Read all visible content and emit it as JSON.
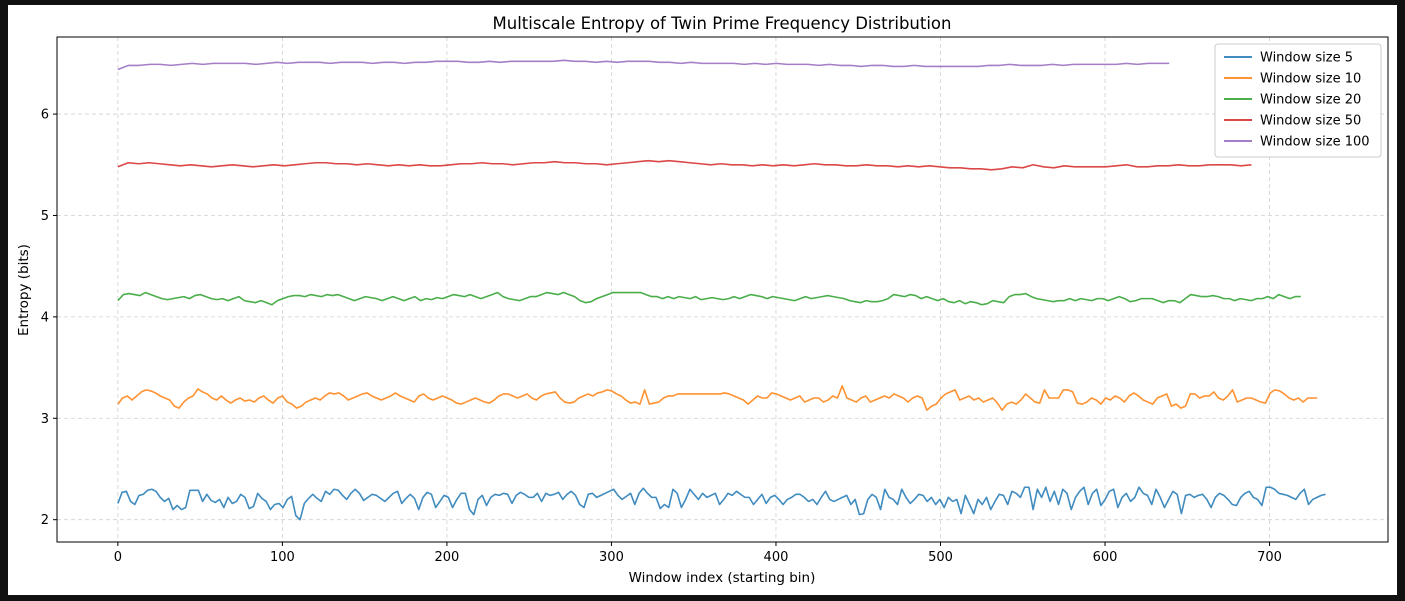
{
  "chart_data": {
    "type": "line",
    "title": "Multiscale Entropy of Twin Prime Frequency Distribution",
    "xlabel": "Window index (starting bin)",
    "ylabel": "Entropy (bits)",
    "xlim": [
      -37,
      772
    ],
    "ylim": [
      1.78,
      6.76
    ],
    "xticks": [
      0,
      100,
      200,
      300,
      400,
      500,
      600,
      700
    ],
    "yticks": [
      2,
      3,
      4,
      5,
      6
    ],
    "grid": true,
    "legend_position": "upper right",
    "series": [
      {
        "name": "Window size 5",
        "color": "#1f77b4",
        "x_end": 734,
        "y": [
          2.16,
          2.27,
          2.28,
          2.18,
          2.15,
          2.24,
          2.25,
          2.29,
          2.3,
          2.28,
          2.22,
          2.18,
          2.21,
          2.1,
          2.14,
          2.1,
          2.12,
          2.29,
          2.29,
          2.29,
          2.18,
          2.25,
          2.19,
          2.17,
          2.2,
          2.12,
          2.22,
          2.16,
          2.18,
          2.25,
          2.22,
          2.11,
          2.13,
          2.26,
          2.21,
          2.18,
          2.1,
          2.15,
          2.16,
          2.12,
          2.2,
          2.23,
          2.04,
          2.0,
          2.16,
          2.21,
          2.25,
          2.21,
          2.18,
          2.28,
          2.25,
          2.3,
          2.29,
          2.24,
          2.2,
          2.26,
          2.3,
          2.26,
          2.19,
          2.22,
          2.25,
          2.24,
          2.21,
          2.18,
          2.22,
          2.26,
          2.28,
          2.16,
          2.21,
          2.25,
          2.21,
          2.1,
          2.22,
          2.27,
          2.25,
          2.12,
          2.18,
          2.24,
          2.22,
          2.12,
          2.2,
          2.26,
          2.26,
          2.1,
          2.05,
          2.2,
          2.24,
          2.14,
          2.22,
          2.25,
          2.24,
          2.26,
          2.25,
          2.16,
          2.24,
          2.27,
          2.25,
          2.22,
          2.22,
          2.26,
          2.18,
          2.26,
          2.24,
          2.25,
          2.27,
          2.2,
          2.25,
          2.28,
          2.24,
          2.15,
          2.12,
          2.25,
          2.26,
          2.22,
          2.24,
          2.26,
          2.28,
          2.3,
          2.24,
          2.2,
          2.23,
          2.26,
          2.15,
          2.26,
          2.31,
          2.26,
          2.22,
          2.22,
          2.11,
          2.15,
          2.12,
          2.3,
          2.26,
          2.12,
          2.2,
          2.3,
          2.25,
          2.2,
          2.26,
          2.22,
          2.24,
          2.26,
          2.15,
          2.2,
          2.26,
          2.24,
          2.28,
          2.25,
          2.22,
          2.22,
          2.15,
          2.2,
          2.25,
          2.16,
          2.22,
          2.24,
          2.2,
          2.15,
          2.2,
          2.22,
          2.25,
          2.25,
          2.22,
          2.18,
          2.2,
          2.15,
          2.22,
          2.28,
          2.2,
          2.18,
          2.2,
          2.22,
          2.24,
          2.15,
          2.2,
          2.05,
          2.06,
          2.2,
          2.25,
          2.22,
          2.1,
          2.3,
          2.22,
          2.2,
          2.15,
          2.3,
          2.22,
          2.16,
          2.2,
          2.25,
          2.24,
          2.18,
          2.22,
          2.15,
          2.2,
          2.12,
          2.22,
          2.18,
          2.2,
          2.06,
          2.24,
          2.15,
          2.06,
          2.2,
          2.15,
          2.22,
          2.1,
          2.18,
          2.25,
          2.24,
          2.15,
          2.28,
          2.26,
          2.22,
          2.32,
          2.32,
          2.1,
          2.3,
          2.22,
          2.32,
          2.18,
          2.28,
          2.15,
          2.3,
          2.26,
          2.1,
          2.22,
          2.28,
          2.32,
          2.15,
          2.26,
          2.3,
          2.14,
          2.2,
          2.28,
          2.3,
          2.12,
          2.22,
          2.26,
          2.18,
          2.22,
          2.32,
          2.26,
          2.24,
          2.15,
          2.3,
          2.22,
          2.12,
          2.2,
          2.28,
          2.25,
          2.06,
          2.24,
          2.25,
          2.22,
          2.24,
          2.25,
          2.2,
          2.12,
          2.22,
          2.26,
          2.24,
          2.2,
          2.15,
          2.14,
          2.22,
          2.26,
          2.28,
          2.22,
          2.2,
          2.14,
          2.32,
          2.32,
          2.3,
          2.26,
          2.25,
          2.24,
          2.22,
          2.2,
          2.26,
          2.3,
          2.15,
          2.2,
          2.22,
          2.24,
          2.25
        ]
      },
      {
        "name": "Window size 10",
        "color": "#ff7f0e",
        "x_end": 729,
        "y": [
          3.14,
          3.2,
          3.22,
          3.18,
          3.22,
          3.26,
          3.28,
          3.27,
          3.25,
          3.22,
          3.2,
          3.18,
          3.12,
          3.1,
          3.16,
          3.2,
          3.22,
          3.29,
          3.26,
          3.24,
          3.2,
          3.18,
          3.22,
          3.18,
          3.15,
          3.18,
          3.2,
          3.17,
          3.18,
          3.16,
          3.2,
          3.22,
          3.18,
          3.15,
          3.2,
          3.22,
          3.16,
          3.14,
          3.1,
          3.12,
          3.16,
          3.18,
          3.2,
          3.18,
          3.22,
          3.25,
          3.24,
          3.25,
          3.22,
          3.18,
          3.2,
          3.22,
          3.24,
          3.25,
          3.22,
          3.2,
          3.18,
          3.2,
          3.22,
          3.25,
          3.22,
          3.2,
          3.18,
          3.16,
          3.22,
          3.24,
          3.2,
          3.18,
          3.2,
          3.22,
          3.2,
          3.18,
          3.15,
          3.14,
          3.16,
          3.18,
          3.2,
          3.18,
          3.16,
          3.15,
          3.18,
          3.22,
          3.24,
          3.24,
          3.22,
          3.2,
          3.22,
          3.24,
          3.2,
          3.18,
          3.22,
          3.24,
          3.25,
          3.26,
          3.2,
          3.16,
          3.15,
          3.16,
          3.2,
          3.22,
          3.24,
          3.22,
          3.25,
          3.26,
          3.28,
          3.27,
          3.24,
          3.22,
          3.18,
          3.15,
          3.16,
          3.14,
          3.28,
          3.14,
          3.15,
          3.16,
          3.2,
          3.22,
          3.22,
          3.24,
          3.24,
          3.24,
          3.24,
          3.24,
          3.24,
          3.24,
          3.24,
          3.24,
          3.24,
          3.25,
          3.24,
          3.22,
          3.2,
          3.18,
          3.14,
          3.18,
          3.22,
          3.2,
          3.2,
          3.25,
          3.24,
          3.22,
          3.2,
          3.18,
          3.2,
          3.22,
          3.16,
          3.18,
          3.2,
          3.2,
          3.16,
          3.18,
          3.22,
          3.2,
          3.32,
          3.2,
          3.18,
          3.16,
          3.2,
          3.22,
          3.16,
          3.18,
          3.2,
          3.22,
          3.2,
          3.24,
          3.22,
          3.2,
          3.16,
          3.2,
          3.22,
          3.2,
          3.08,
          3.12,
          3.14,
          3.2,
          3.24,
          3.26,
          3.28,
          3.18,
          3.2,
          3.22,
          3.18,
          3.2,
          3.16,
          3.18,
          3.2,
          3.15,
          3.08,
          3.14,
          3.16,
          3.14,
          3.18,
          3.24,
          3.2,
          3.16,
          3.15,
          3.28,
          3.2,
          3.2,
          3.2,
          3.28,
          3.28,
          3.26,
          3.15,
          3.14,
          3.16,
          3.2,
          3.18,
          3.14,
          3.2,
          3.18,
          3.22,
          3.2,
          3.16,
          3.22,
          3.25,
          3.22,
          3.18,
          3.16,
          3.14,
          3.2,
          3.22,
          3.24,
          3.12,
          3.14,
          3.1,
          3.12,
          3.24,
          3.24,
          3.2,
          3.22,
          3.22,
          3.26,
          3.2,
          3.18,
          3.22,
          3.28,
          3.16,
          3.18,
          3.2,
          3.2,
          3.18,
          3.16,
          3.15,
          3.25,
          3.28,
          3.27,
          3.24,
          3.2,
          3.18,
          3.2,
          3.16,
          3.2,
          3.2,
          3.2
        ]
      },
      {
        "name": "Window size 20",
        "color": "#2ca02c",
        "x_end": 719,
        "y": [
          4.16,
          4.22,
          4.23,
          4.22,
          4.21,
          4.24,
          4.22,
          4.2,
          4.18,
          4.17,
          4.18,
          4.19,
          4.2,
          4.18,
          4.21,
          4.22,
          4.2,
          4.18,
          4.17,
          4.18,
          4.16,
          4.18,
          4.2,
          4.16,
          4.15,
          4.14,
          4.16,
          4.14,
          4.12,
          4.16,
          4.18,
          4.2,
          4.21,
          4.21,
          4.2,
          4.22,
          4.21,
          4.2,
          4.22,
          4.21,
          4.22,
          4.2,
          4.18,
          4.16,
          4.18,
          4.2,
          4.19,
          4.18,
          4.16,
          4.18,
          4.2,
          4.18,
          4.16,
          4.18,
          4.2,
          4.16,
          4.18,
          4.17,
          4.19,
          4.18,
          4.2,
          4.22,
          4.21,
          4.2,
          4.22,
          4.2,
          4.18,
          4.2,
          4.22,
          4.24,
          4.2,
          4.18,
          4.17,
          4.16,
          4.18,
          4.2,
          4.2,
          4.22,
          4.24,
          4.23,
          4.22,
          4.24,
          4.22,
          4.2,
          4.16,
          4.14,
          4.15,
          4.18,
          4.2,
          4.22,
          4.24,
          4.24,
          4.24,
          4.24,
          4.24,
          4.24,
          4.22,
          4.2,
          4.2,
          4.18,
          4.2,
          4.18,
          4.2,
          4.19,
          4.18,
          4.2,
          4.17,
          4.18,
          4.19,
          4.18,
          4.17,
          4.18,
          4.2,
          4.18,
          4.2,
          4.22,
          4.21,
          4.2,
          4.18,
          4.2,
          4.19,
          4.18,
          4.17,
          4.16,
          4.18,
          4.2,
          4.18,
          4.19,
          4.2,
          4.21,
          4.2,
          4.19,
          4.18,
          4.16,
          4.15,
          4.14,
          4.16,
          4.15,
          4.15,
          4.16,
          4.18,
          4.22,
          4.21,
          4.2,
          4.22,
          4.21,
          4.18,
          4.2,
          4.18,
          4.16,
          4.18,
          4.15,
          4.14,
          4.16,
          4.13,
          4.15,
          4.14,
          4.12,
          4.13,
          4.16,
          4.15,
          4.14,
          4.2,
          4.22,
          4.22,
          4.23,
          4.2,
          4.18,
          4.17,
          4.16,
          4.15,
          4.16,
          4.16,
          4.18,
          4.16,
          4.18,
          4.17,
          4.16,
          4.18,
          4.18,
          4.16,
          4.18,
          4.2,
          4.18,
          4.15,
          4.16,
          4.18,
          4.18,
          4.18,
          4.16,
          4.14,
          4.16,
          4.16,
          4.14,
          4.18,
          4.22,
          4.21,
          4.2,
          4.2,
          4.21,
          4.2,
          4.18,
          4.18,
          4.16,
          4.18,
          4.17,
          4.16,
          4.18,
          4.18,
          4.2,
          4.18,
          4.22,
          4.2,
          4.18,
          4.2,
          4.2
        ]
      },
      {
        "name": "Window size 50",
        "color": "#d62728",
        "x_end": 689,
        "y": [
          5.48,
          5.52,
          5.51,
          5.52,
          5.51,
          5.5,
          5.49,
          5.5,
          5.49,
          5.48,
          5.49,
          5.5,
          5.49,
          5.48,
          5.49,
          5.5,
          5.49,
          5.5,
          5.51,
          5.52,
          5.52,
          5.51,
          5.51,
          5.5,
          5.51,
          5.5,
          5.49,
          5.5,
          5.49,
          5.5,
          5.49,
          5.49,
          5.5,
          5.51,
          5.51,
          5.52,
          5.51,
          5.51,
          5.5,
          5.51,
          5.52,
          5.52,
          5.53,
          5.52,
          5.52,
          5.51,
          5.51,
          5.5,
          5.51,
          5.52,
          5.53,
          5.54,
          5.53,
          5.54,
          5.53,
          5.52,
          5.51,
          5.5,
          5.51,
          5.5,
          5.5,
          5.49,
          5.5,
          5.49,
          5.5,
          5.49,
          5.5,
          5.51,
          5.5,
          5.5,
          5.49,
          5.49,
          5.5,
          5.49,
          5.49,
          5.48,
          5.49,
          5.48,
          5.49,
          5.48,
          5.47,
          5.47,
          5.46,
          5.46,
          5.45,
          5.46,
          5.48,
          5.47,
          5.5,
          5.48,
          5.47,
          5.49,
          5.48,
          5.48,
          5.48,
          5.48,
          5.49,
          5.5,
          5.48,
          5.48,
          5.49,
          5.49,
          5.5,
          5.49,
          5.49,
          5.5,
          5.5,
          5.5,
          5.49,
          5.5
        ]
      },
      {
        "name": "Window size 100",
        "color": "#9467bd",
        "x_end": 639,
        "y": [
          6.44,
          6.48,
          6.48,
          6.49,
          6.49,
          6.48,
          6.49,
          6.5,
          6.49,
          6.5,
          6.5,
          6.5,
          6.5,
          6.49,
          6.5,
          6.51,
          6.5,
          6.51,
          6.51,
          6.51,
          6.5,
          6.51,
          6.51,
          6.51,
          6.5,
          6.51,
          6.51,
          6.5,
          6.51,
          6.51,
          6.52,
          6.52,
          6.52,
          6.51,
          6.51,
          6.52,
          6.51,
          6.52,
          6.52,
          6.52,
          6.52,
          6.52,
          6.53,
          6.52,
          6.52,
          6.51,
          6.52,
          6.51,
          6.52,
          6.52,
          6.52,
          6.51,
          6.51,
          6.5,
          6.51,
          6.5,
          6.5,
          6.5,
          6.5,
          6.49,
          6.5,
          6.49,
          6.5,
          6.49,
          6.49,
          6.49,
          6.48,
          6.49,
          6.48,
          6.48,
          6.47,
          6.48,
          6.48,
          6.47,
          6.47,
          6.48,
          6.47,
          6.47,
          6.47,
          6.47,
          6.47,
          6.47,
          6.48,
          6.48,
          6.49,
          6.48,
          6.48,
          6.48,
          6.49,
          6.48,
          6.49,
          6.49,
          6.49,
          6.49,
          6.49,
          6.5,
          6.49,
          6.5,
          6.5,
          6.5
        ]
      }
    ]
  }
}
